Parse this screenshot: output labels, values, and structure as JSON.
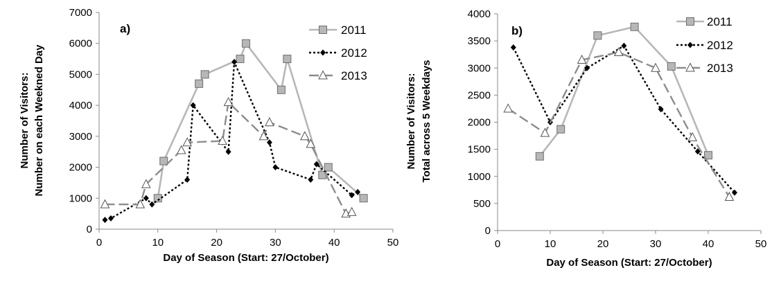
{
  "chart_data": [
    {
      "type": "line",
      "panel_label": "a)",
      "xlabel": "Day of Season (Start: 27/October)",
      "ylabel": [
        "Number of Visitors:",
        "Number on each Weekned Day"
      ],
      "xlim": [
        0,
        50
      ],
      "ylim": [
        0,
        7000
      ],
      "xticks": [
        0,
        10,
        20,
        30,
        40,
        50
      ],
      "yticks": [
        0,
        1000,
        2000,
        3000,
        4000,
        5000,
        6000,
        7000
      ],
      "grid": false,
      "legend": "top-right",
      "series": [
        {
          "name": "2011",
          "color": "#b7b7b7",
          "dash": "solid",
          "marker": "square",
          "x": [
            10,
            11,
            17,
            18,
            24,
            25,
            31,
            32,
            38,
            39,
            45
          ],
          "y": [
            1000,
            2200,
            4700,
            5000,
            5500,
            6000,
            4500,
            5500,
            1750,
            2000,
            1000
          ]
        },
        {
          "name": "2012",
          "color": "#000000",
          "dash": "dotted",
          "marker": "diamond",
          "x": [
            1,
            2,
            8,
            9,
            15,
            16,
            22,
            23,
            29,
            30,
            36,
            37,
            43,
            44
          ],
          "y": [
            300,
            350,
            1000,
            800,
            1600,
            4000,
            2500,
            5400,
            2800,
            2000,
            1600,
            2100,
            1100,
            1200
          ]
        },
        {
          "name": "2013",
          "color": "#8c8c8c",
          "dash": "dashed",
          "marker": "triangle",
          "x": [
            1,
            7,
            8,
            14,
            15,
            21,
            22,
            28,
            29,
            35,
            36,
            42,
            43
          ],
          "y": [
            800,
            800,
            1450,
            2550,
            2800,
            2850,
            4100,
            3000,
            3450,
            3000,
            2750,
            500,
            550
          ]
        }
      ]
    },
    {
      "type": "line",
      "panel_label": "b)",
      "xlabel": "Day of Season (Start: 27/October)",
      "ylabel": [
        "Number of Visitors:",
        "Total across 5 Weekdays"
      ],
      "xlim": [
        0,
        50
      ],
      "ylim": [
        0,
        4000
      ],
      "xticks": [
        0,
        10,
        20,
        30,
        40,
        50
      ],
      "yticks": [
        0,
        500,
        1000,
        1500,
        2000,
        2500,
        3000,
        3500,
        4000
      ],
      "grid": false,
      "legend": "top-right",
      "series": [
        {
          "name": "2011",
          "color": "#b7b7b7",
          "dash": "solid",
          "marker": "square",
          "x": [
            8,
            12,
            19,
            26,
            33,
            40
          ],
          "y": [
            1370,
            1870,
            3600,
            3760,
            3030,
            1390
          ]
        },
        {
          "name": "2012",
          "color": "#000000",
          "dash": "dotted",
          "marker": "diamond",
          "x": [
            3,
            10,
            17,
            24,
            31,
            38,
            45
          ],
          "y": [
            3380,
            2000,
            3000,
            3410,
            2240,
            1460,
            700
          ]
        },
        {
          "name": "2013",
          "color": "#8c8c8c",
          "dash": "dashed",
          "marker": "triangle",
          "x": [
            2,
            9,
            16,
            23,
            30,
            37,
            44
          ],
          "y": [
            2250,
            1800,
            3150,
            3290,
            3000,
            1720,
            620
          ]
        }
      ]
    }
  ]
}
